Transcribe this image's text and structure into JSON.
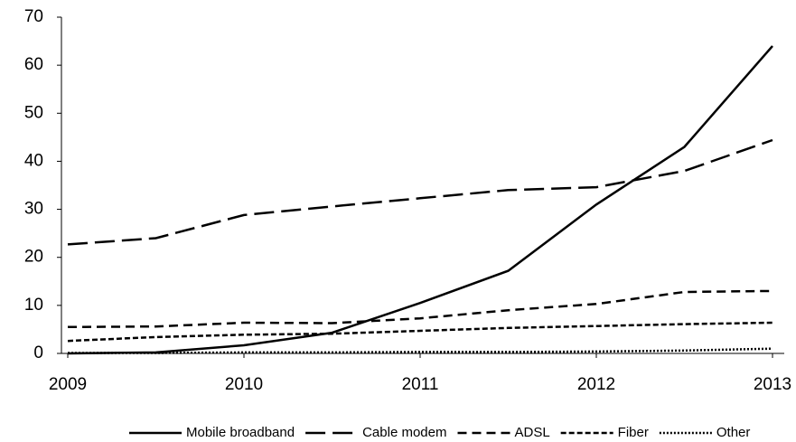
{
  "chart_data": {
    "type": "line",
    "x": [
      2009,
      2009.5,
      2010,
      2010.5,
      2011,
      2011.5,
      2012,
      2012.5,
      2013
    ],
    "xlim": [
      2009,
      2013
    ],
    "xticks": [
      2009,
      2010,
      2011,
      2012,
      2013
    ],
    "ylim": [
      0,
      70
    ],
    "yticks": [
      0,
      10,
      20,
      30,
      40,
      50,
      60,
      70
    ],
    "grid": false,
    "legend": "bottom",
    "series": [
      {
        "name": "Mobile broadband",
        "color": "#000000",
        "values": [
          0,
          0.2,
          1.7,
          4.3,
          10.5,
          17.2,
          31,
          43,
          64
        ]
      },
      {
        "name": "Cable modem",
        "color": "#000000",
        "values": [
          22.7,
          24,
          28.8,
          30.6,
          32.3,
          34,
          34.6,
          38,
          44.4
        ]
      },
      {
        "name": "ADSL",
        "color": "#000000",
        "values": [
          5.5,
          5.6,
          6.4,
          6.3,
          7.3,
          9,
          10.3,
          12.8,
          13
        ]
      },
      {
        "name": "Fiber",
        "color": "#000000",
        "values": [
          2.6,
          3.4,
          3.9,
          4.1,
          4.7,
          5.3,
          5.7,
          6.1,
          6.4
        ]
      },
      {
        "name": "Other",
        "color": "#000000",
        "values": [
          0.1,
          0.1,
          0.2,
          0.2,
          0.3,
          0.3,
          0.4,
          0.6,
          1.0
        ]
      }
    ]
  }
}
